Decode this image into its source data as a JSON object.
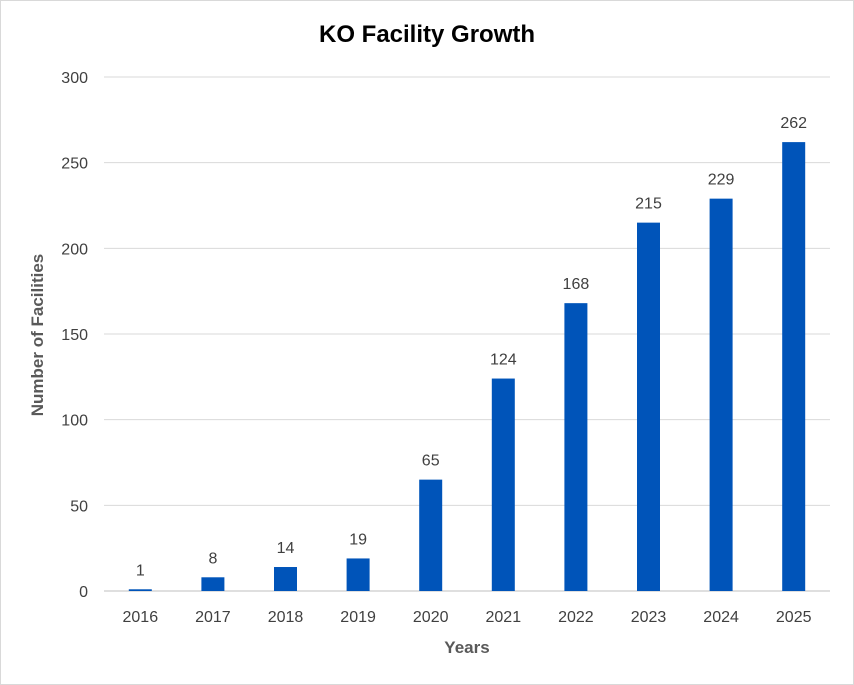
{
  "chart_data": {
    "type": "bar",
    "title": "KO Facility Growth",
    "xlabel": "Years",
    "ylabel": "Number of Facilities",
    "categories": [
      "2016",
      "2017",
      "2018",
      "2019",
      "2020",
      "2021",
      "2022",
      "2023",
      "2024",
      "2025"
    ],
    "values": [
      1,
      8,
      14,
      19,
      65,
      124,
      168,
      215,
      229,
      262
    ],
    "ylim": [
      0,
      300
    ],
    "yticks": [
      "0",
      "50",
      "100",
      "150",
      "200",
      "250",
      "300"
    ],
    "grid": true,
    "legend": "none",
    "bar_color": "#0054b9",
    "data_labels": true
  }
}
